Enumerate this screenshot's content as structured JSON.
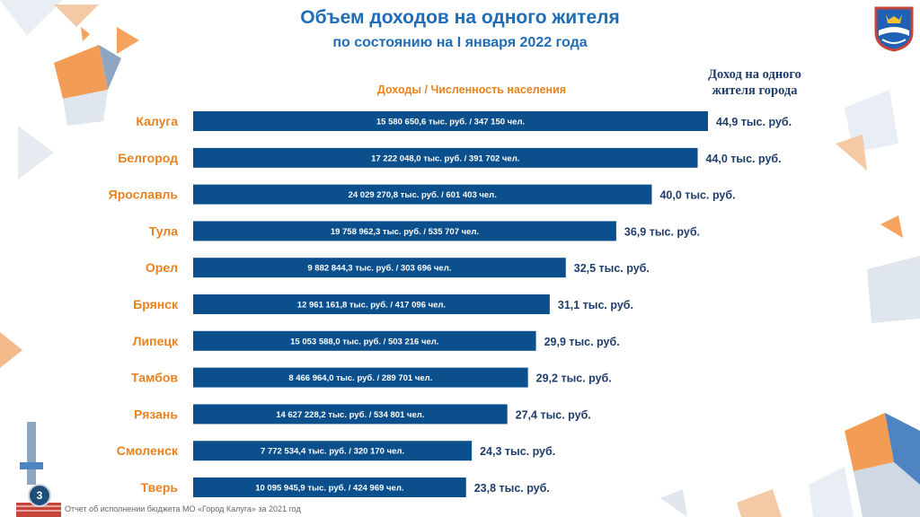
{
  "header": {
    "title": "Объем доходов на одного жителя",
    "subtitle": "по состоянию на I января 2022 года"
  },
  "columns": {
    "left_header": "Доходы / Численность населения",
    "right_header_line1": "Доход на одного",
    "right_header_line2": "жителя города"
  },
  "footer": {
    "text": "Отчет об исполнении бюджета МО «Город Калуга» за 2021 год",
    "page_number": "3"
  },
  "colors": {
    "bar": "#0b4f8c",
    "city": "#e8821e",
    "title": "#1f6db5",
    "value": "#1f3d6b"
  },
  "chart_data": {
    "type": "bar",
    "orientation": "horizontal",
    "title": "Объем доходов на одного жителя",
    "xlabel": "Доход на одного жителя города",
    "ylabel": "",
    "xlim": [
      0,
      44.9
    ],
    "categories": [
      "Калуга",
      "Белгород",
      "Ярославль",
      "Тула",
      "Орел",
      "Брянск",
      "Липецк",
      "Тамбов",
      "Рязань",
      "Смоленск",
      "Тверь"
    ],
    "values": [
      44.9,
      44.0,
      40.0,
      36.9,
      32.5,
      31.1,
      29.9,
      29.2,
      27.4,
      24.3,
      23.8
    ],
    "value_labels": [
      "44,9 тыс. руб.",
      "44,0 тыс. руб.",
      "40,0 тыс. руб.",
      "36,9 тыс. руб.",
      "32,5 тыс. руб.",
      "31,1 тыс. руб.",
      "29,9 тыс. руб.",
      "29,2 тыс. руб.",
      "27,4 тыс. руб.",
      "24,3 тыс. руб.",
      "23,8 тыс. руб."
    ],
    "bar_labels": [
      "15 580 650,6 тыс. руб. / 347 150 чел.",
      "17 222 048,0 тыс. руб. / 391 702 чел.",
      "24 029 270,8 тыс. руб. / 601 403 чел.",
      "19 758 962,3 тыс. руб. / 535 707 чел.",
      "9 882 844,3 тыс. руб. / 303 696 чел.",
      "12 961 161,8 тыс. руб. / 417 096 чел.",
      "15 053 588,0 тыс. руб. / 503 216 чел.",
      "8 466 964,0 тыс. руб. / 289 701 чел.",
      "14 627 228,2 тыс. руб. / 534 801 чел.",
      "7 772 534,4 тыс. руб. / 320 170 чел.",
      "10 095 945,9 тыс. руб. / 424 969 чел."
    ]
  }
}
